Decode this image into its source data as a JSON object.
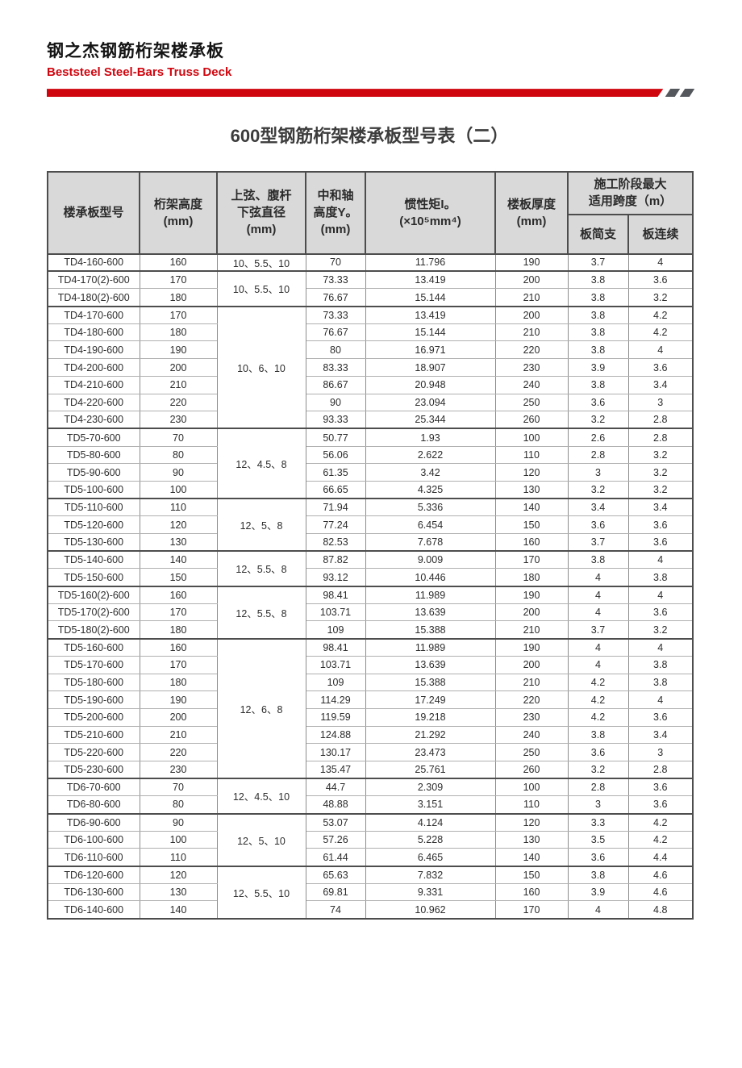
{
  "brand": {
    "title": "钢之杰钢筋桁架楼承板",
    "subtitle": "Beststeel Steel-Bars Truss Deck"
  },
  "colors": {
    "accent_red": "#d0060f",
    "slash_gray": "#54575b",
    "header_gray": "#d9d9d9"
  },
  "table": {
    "title": "600型钢筋桁架楼承板型号表（二）",
    "header": {
      "model": "楼承板型号",
      "truss_height": [
        "桁架高度",
        "(mm)"
      ],
      "diameter": [
        "上弦、腹杆",
        "下弦直径",
        "(mm)"
      ],
      "neutral_axis": [
        "中和轴",
        "高度Y。",
        "(mm)"
      ],
      "inertia": [
        "惯性矩I。",
        "(×10⁵mm⁴)"
      ],
      "thickness": [
        "楼板厚度",
        "(mm)"
      ],
      "span_group": [
        "施工阶段最大",
        "适用跨度（m）"
      ],
      "span_simple": "板简支",
      "span_continuous": "板连续"
    },
    "groups": [
      {
        "diameter": "10、5.5、10",
        "rows": [
          [
            "TD4-160-600",
            "160",
            "70",
            "11.796",
            "190",
            "3.7",
            "4"
          ]
        ]
      },
      {
        "diameter": "10、5.5、10",
        "rows": [
          [
            "TD4-170(2)-600",
            "170",
            "73.33",
            "13.419",
            "200",
            "3.8",
            "3.6"
          ],
          [
            "TD4-180(2)-600",
            "180",
            "76.67",
            "15.144",
            "210",
            "3.8",
            "3.2"
          ]
        ]
      },
      {
        "diameter": "10、6、10",
        "rows": [
          [
            "TD4-170-600",
            "170",
            "73.33",
            "13.419",
            "200",
            "3.8",
            "4.2"
          ],
          [
            "TD4-180-600",
            "180",
            "76.67",
            "15.144",
            "210",
            "3.8",
            "4.2"
          ],
          [
            "TD4-190-600",
            "190",
            "80",
            "16.971",
            "220",
            "3.8",
            "4"
          ],
          [
            "TD4-200-600",
            "200",
            "83.33",
            "18.907",
            "230",
            "3.9",
            "3.6"
          ],
          [
            "TD4-210-600",
            "210",
            "86.67",
            "20.948",
            "240",
            "3.8",
            "3.4"
          ],
          [
            "TD4-220-600",
            "220",
            "90",
            "23.094",
            "250",
            "3.6",
            "3"
          ],
          [
            "TD4-230-600",
            "230",
            "93.33",
            "25.344",
            "260",
            "3.2",
            "2.8"
          ]
        ]
      },
      {
        "diameter": "12、4.5、8",
        "rows": [
          [
            "TD5-70-600",
            "70",
            "50.77",
            "1.93",
            "100",
            "2.6",
            "2.8"
          ],
          [
            "TD5-80-600",
            "80",
            "56.06",
            "2.622",
            "110",
            "2.8",
            "3.2"
          ],
          [
            "TD5-90-600",
            "90",
            "61.35",
            "3.42",
            "120",
            "3",
            "3.2"
          ],
          [
            "TD5-100-600",
            "100",
            "66.65",
            "4.325",
            "130",
            "3.2",
            "3.2"
          ]
        ]
      },
      {
        "diameter": "12、5、8",
        "rows": [
          [
            "TD5-110-600",
            "110",
            "71.94",
            "5.336",
            "140",
            "3.4",
            "3.4"
          ],
          [
            "TD5-120-600",
            "120",
            "77.24",
            "6.454",
            "150",
            "3.6",
            "3.6"
          ],
          [
            "TD5-130-600",
            "130",
            "82.53",
            "7.678",
            "160",
            "3.7",
            "3.6"
          ]
        ]
      },
      {
        "diameter": "12、5.5、8",
        "rows": [
          [
            "TD5-140-600",
            "140",
            "87.82",
            "9.009",
            "170",
            "3.8",
            "4"
          ],
          [
            "TD5-150-600",
            "150",
            "93.12",
            "10.446",
            "180",
            "4",
            "3.8"
          ]
        ]
      },
      {
        "diameter": "12、5.5、8",
        "rows": [
          [
            "TD5-160(2)-600",
            "160",
            "98.41",
            "11.989",
            "190",
            "4",
            "4"
          ],
          [
            "TD5-170(2)-600",
            "170",
            "103.71",
            "13.639",
            "200",
            "4",
            "3.6"
          ],
          [
            "TD5-180(2)-600",
            "180",
            "109",
            "15.388",
            "210",
            "3.7",
            "3.2"
          ]
        ]
      },
      {
        "diameter": "12、6、8",
        "rows": [
          [
            "TD5-160-600",
            "160",
            "98.41",
            "11.989",
            "190",
            "4",
            "4"
          ],
          [
            "TD5-170-600",
            "170",
            "103.71",
            "13.639",
            "200",
            "4",
            "3.8"
          ],
          [
            "TD5-180-600",
            "180",
            "109",
            "15.388",
            "210",
            "4.2",
            "3.8"
          ],
          [
            "TD5-190-600",
            "190",
            "114.29",
            "17.249",
            "220",
            "4.2",
            "4"
          ],
          [
            "TD5-200-600",
            "200",
            "119.59",
            "19.218",
            "230",
            "4.2",
            "3.6"
          ],
          [
            "TD5-210-600",
            "210",
            "124.88",
            "21.292",
            "240",
            "3.8",
            "3.4"
          ],
          [
            "TD5-220-600",
            "220",
            "130.17",
            "23.473",
            "250",
            "3.6",
            "3"
          ],
          [
            "TD5-230-600",
            "230",
            "135.47",
            "25.761",
            "260",
            "3.2",
            "2.8"
          ]
        ]
      },
      {
        "diameter": "12、4.5、10",
        "rows": [
          [
            "TD6-70-600",
            "70",
            "44.7",
            "2.309",
            "100",
            "2.8",
            "3.6"
          ],
          [
            "TD6-80-600",
            "80",
            "48.88",
            "3.151",
            "110",
            "3",
            "3.6"
          ]
        ]
      },
      {
        "diameter": "12、5、10",
        "rows": [
          [
            "TD6-90-600",
            "90",
            "53.07",
            "4.124",
            "120",
            "3.3",
            "4.2"
          ],
          [
            "TD6-100-600",
            "100",
            "57.26",
            "5.228",
            "130",
            "3.5",
            "4.2"
          ],
          [
            "TD6-110-600",
            "110",
            "61.44",
            "6.465",
            "140",
            "3.6",
            "4.4"
          ]
        ]
      },
      {
        "diameter": "12、5.5、10",
        "rows": [
          [
            "TD6-120-600",
            "120",
            "65.63",
            "7.832",
            "150",
            "3.8",
            "4.6"
          ],
          [
            "TD6-130-600",
            "130",
            "69.81",
            "9.331",
            "160",
            "3.9",
            "4.6"
          ],
          [
            "TD6-140-600",
            "140",
            "74",
            "10.962",
            "170",
            "4",
            "4.8"
          ]
        ]
      }
    ]
  }
}
